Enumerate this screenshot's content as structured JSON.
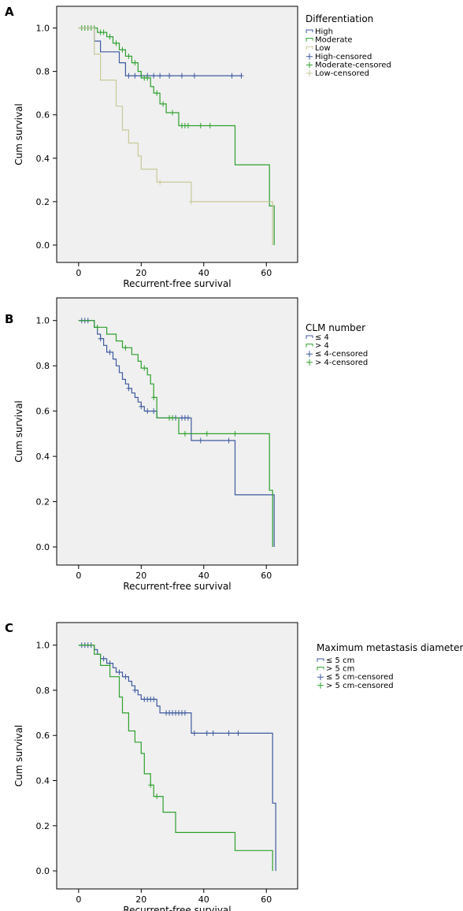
{
  "chart_data": [
    {
      "type": "line",
      "panel_label": "A",
      "xlabel": "Recurrent-free survival",
      "ylabel": "Cum survival",
      "xlim": [
        -7,
        70
      ],
      "ylim": [
        -0.08,
        1.1
      ],
      "xticks": [
        0,
        20,
        40,
        60
      ],
      "yticks": [
        0.0,
        0.2,
        0.4,
        0.6,
        0.8,
        1.0
      ],
      "legend_title": "Differentiation",
      "legend_placement": "right",
      "legend": [
        {
          "label": "High",
          "kind": "line",
          "color": "#3d5a9e"
        },
        {
          "label": "Moderate",
          "kind": "line",
          "color": "#2ea12e"
        },
        {
          "label": "Low",
          "kind": "line",
          "color": "#c9c99a"
        },
        {
          "label": "High-censored",
          "kind": "cross",
          "color": "#3d5a9e"
        },
        {
          "label": "Moderate-censored",
          "kind": "cross",
          "color": "#2ea12e"
        },
        {
          "label": "Low-censored",
          "kind": "cross",
          "color": "#c9c99a"
        }
      ],
      "series": [
        {
          "name": "High",
          "color": "#3d5a9e",
          "x": [
            0,
            5,
            7,
            10,
            13,
            15,
            52
          ],
          "y": [
            1.0,
            0.94,
            0.89,
            0.89,
            0.84,
            0.78,
            0.78
          ],
          "censored_x": [
            16,
            18,
            20,
            22,
            24,
            26,
            29,
            33,
            37,
            49,
            52
          ]
        },
        {
          "name": "Moderate",
          "color": "#2ea12e",
          "x": [
            0,
            6,
            9,
            11,
            13,
            15,
            17,
            19,
            20,
            23,
            24,
            26,
            28,
            31,
            32,
            36,
            50,
            61,
            62,
            62.5
          ],
          "y": [
            1.0,
            0.98,
            0.96,
            0.93,
            0.9,
            0.87,
            0.84,
            0.8,
            0.77,
            0.73,
            0.7,
            0.65,
            0.61,
            0.61,
            0.55,
            0.55,
            0.37,
            0.18,
            0.18,
            0.0
          ],
          "censored_x": [
            1,
            2,
            3,
            4,
            5,
            7,
            8,
            10,
            12,
            14,
            16,
            18,
            21,
            22,
            25,
            27,
            30,
            33,
            34,
            35,
            39,
            42
          ]
        },
        {
          "name": "Low",
          "color": "#c9c99a",
          "x": [
            0,
            5,
            7,
            12,
            14,
            16,
            19,
            20,
            21,
            25,
            35,
            36,
            61,
            62
          ],
          "y": [
            1.0,
            0.88,
            0.76,
            0.64,
            0.53,
            0.47,
            0.41,
            0.35,
            0.35,
            0.29,
            0.29,
            0.2,
            0.2,
            0.0
          ],
          "censored_x": [
            26,
            36
          ]
        }
      ]
    },
    {
      "type": "line",
      "panel_label": "B",
      "xlabel": "Recurrent-free survival",
      "ylabel": "Cum survival",
      "xlim": [
        -7,
        70
      ],
      "ylim": [
        -0.08,
        1.1
      ],
      "xticks": [
        0,
        20,
        40,
        60
      ],
      "yticks": [
        0.0,
        0.2,
        0.4,
        0.6,
        0.8,
        1.0
      ],
      "legend_title": "CLM number",
      "legend_placement": "right",
      "legend": [
        {
          "label": "≤ 4",
          "kind": "line",
          "color": "#3d5a9e"
        },
        {
          "label": "> 4",
          "kind": "line",
          "color": "#2ea12e"
        },
        {
          "label": "≤ 4-censored",
          "kind": "cross",
          "color": "#3d5a9e"
        },
        {
          "label": "> 4-censored",
          "kind": "cross",
          "color": "#2ea12e"
        }
      ],
      "series": [
        {
          "name": "≤ 4",
          "color": "#3d5a9e",
          "x": [
            0,
            5,
            6,
            7,
            8,
            9,
            11,
            12,
            13,
            14,
            15,
            16,
            17,
            18,
            19,
            20,
            21,
            22,
            23,
            25,
            36,
            50,
            62,
            62.5
          ],
          "y": [
            1.0,
            0.97,
            0.94,
            0.92,
            0.89,
            0.86,
            0.83,
            0.8,
            0.77,
            0.74,
            0.72,
            0.7,
            0.68,
            0.66,
            0.64,
            0.62,
            0.6,
            0.6,
            0.6,
            0.57,
            0.47,
            0.23,
            0.23,
            0.0
          ],
          "censored_x": [
            1,
            2,
            3,
            7,
            10,
            16,
            20,
            22,
            24,
            31,
            33,
            34,
            35,
            39,
            48
          ]
        },
        {
          "name": "> 4",
          "color": "#2ea12e",
          "x": [
            0,
            5,
            9,
            12,
            14,
            17,
            19,
            20,
            22,
            23,
            24,
            25,
            31,
            32,
            51,
            61,
            62
          ],
          "y": [
            1.0,
            0.97,
            0.94,
            0.91,
            0.88,
            0.85,
            0.82,
            0.79,
            0.76,
            0.72,
            0.66,
            0.57,
            0.57,
            0.5,
            0.5,
            0.25,
            0.0
          ],
          "censored_x": [
            6,
            15,
            21,
            24,
            29,
            30,
            34,
            41,
            50
          ]
        }
      ]
    },
    {
      "type": "line",
      "panel_label": "C",
      "xlabel": "Recurrent-free survival",
      "ylabel": "Cum survival",
      "xlim": [
        -7,
        70
      ],
      "ylim": [
        -0.08,
        1.1
      ],
      "xticks": [
        0,
        20,
        40,
        60
      ],
      "yticks": [
        0.0,
        0.2,
        0.4,
        0.6,
        0.8,
        1.0
      ],
      "legend_title": "Maximum metastasis diameter",
      "legend_placement": "right",
      "legend": [
        {
          "label": "≤ 5 cm",
          "kind": "line",
          "color": "#3d5a9e"
        },
        {
          "label": "> 5 cm",
          "kind": "line",
          "color": "#2ea12e"
        },
        {
          "label": "≤ 5 cm-censored",
          "kind": "cross",
          "color": "#3d5a9e"
        },
        {
          "label": "> 5 cm-censored",
          "kind": "cross",
          "color": "#2ea12e"
        }
      ],
      "series": [
        {
          "name": "≤ 5 cm",
          "color": "#3d5a9e",
          "x": [
            0,
            5,
            6,
            7,
            9,
            11,
            12,
            14,
            16,
            17,
            18,
            19,
            20,
            24,
            25,
            26,
            27,
            36,
            61,
            62,
            63
          ],
          "y": [
            1.0,
            0.98,
            0.96,
            0.94,
            0.92,
            0.9,
            0.88,
            0.86,
            0.84,
            0.82,
            0.8,
            0.78,
            0.76,
            0.76,
            0.73,
            0.7,
            0.7,
            0.61,
            0.61,
            0.3,
            0.0
          ],
          "censored_x": [
            1,
            2,
            3,
            4,
            8,
            10,
            13,
            15,
            18,
            21,
            22,
            23,
            24,
            28,
            29,
            30,
            31,
            32,
            33,
            34,
            37,
            41,
            43,
            48,
            51
          ]
        },
        {
          "name": "> 5 cm",
          "color": "#2ea12e",
          "x": [
            0,
            5,
            7,
            10,
            13,
            14,
            16,
            18,
            20,
            21,
            23,
            24,
            26,
            27,
            31,
            50,
            62
          ],
          "y": [
            1.0,
            0.96,
            0.91,
            0.86,
            0.77,
            0.7,
            0.62,
            0.57,
            0.52,
            0.43,
            0.38,
            0.33,
            0.33,
            0.26,
            0.17,
            0.09,
            0.0
          ],
          "censored_x": [
            23,
            25
          ]
        }
      ]
    }
  ]
}
